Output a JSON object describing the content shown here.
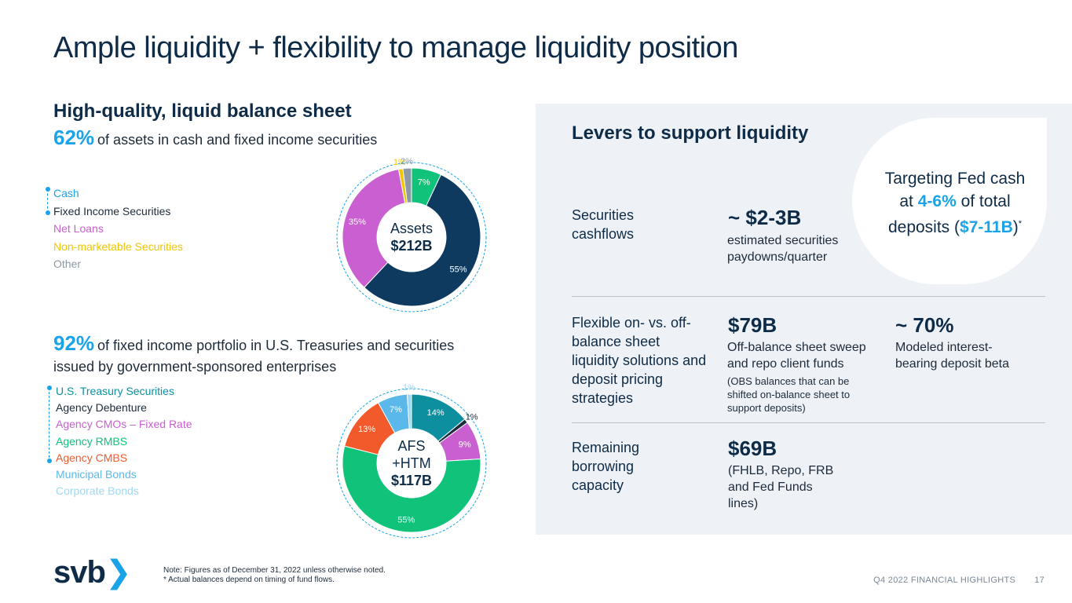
{
  "slide": {
    "title": "Ample liquidity + flexibility to manage liquidity position"
  },
  "left": {
    "heading": "High-quality, liquid balance sheet",
    "stat1_big": "62%",
    "stat1_text": "of assets in cash and fixed income securities",
    "assets_legend": [
      {
        "label": "Cash",
        "color": "#1aa3e8"
      },
      {
        "label": "Fixed Income Securities",
        "color": "#1d2b3a"
      },
      {
        "label": "Net Loans",
        "color": "#c95fd0"
      },
      {
        "label": "Non-marketable Securities",
        "color": "#f2c500"
      },
      {
        "label": "Other",
        "color": "#8d99a6"
      }
    ],
    "assets_center_line1": "Assets",
    "assets_center_line2": "$212B",
    "stat2_big": "92%",
    "stat2_text": "of fixed income portfolio in U.S. Treasuries and securities issued by government-sponsored enterprises",
    "afs_legend": [
      {
        "label": "U.S. Treasury Securities",
        "color": "#0e8fa0"
      },
      {
        "label": "Agency Debenture",
        "color": "#1d2b3a"
      },
      {
        "label": "Agency CMOs – Fixed Rate",
        "color": "#c95fd0"
      },
      {
        "label": "Agency RMBS",
        "color": "#10c27a"
      },
      {
        "label": "Agency CMBS",
        "color": "#f25a2c"
      },
      {
        "label": "Municipal Bonds",
        "color": "#5ab9ea"
      },
      {
        "label": "Corporate Bonds",
        "color": "#9fd8f2"
      }
    ],
    "afs_center_line1": "AFS",
    "afs_center_line2": "+HTM",
    "afs_center_line3": "$117B"
  },
  "chart_data": [
    {
      "type": "pie",
      "title": "Assets $212B",
      "categories": [
        "Cash",
        "Fixed Income Securities",
        "Net Loans",
        "Non-marketable Securities",
        "Other"
      ],
      "values": [
        7,
        55,
        35,
        1,
        2
      ],
      "labels": [
        "7%",
        "55%",
        "35%",
        "1%",
        "2%"
      ],
      "colors": [
        "#10c27a",
        "#0e3a5f",
        "#c95fd0",
        "#f2c500",
        "#8d99a6"
      ]
    },
    {
      "type": "pie",
      "title": "AFS +HTM $117B",
      "categories": [
        "U.S. Treasury Securities",
        "Agency Debenture",
        "Agency CMOs – Fixed Rate",
        "Agency RMBS",
        "Agency CMBS",
        "Municipal Bonds",
        "Corporate Bonds"
      ],
      "values": [
        14,
        1,
        9,
        55,
        13,
        7,
        1
      ],
      "labels": [
        "14%",
        "1%",
        "9%",
        "55%",
        "13%",
        "7%",
        "1%"
      ],
      "colors": [
        "#0e8fa0",
        "#1d2b3a",
        "#c95fd0",
        "#10c27a",
        "#f25a2c",
        "#5ab9ea",
        "#9fd8f2"
      ]
    }
  ],
  "right": {
    "heading": "Levers to support liquidity",
    "target_line1": "Targeting Fed cash",
    "target_line2_pre": "at ",
    "target_line2_hl": "4-6%",
    "target_line2_post": " of total",
    "target_line3_pre": "deposits (",
    "target_line3_hl": "$7-11B",
    "target_line3_post": ")",
    "target_sup": "*",
    "row1_label": "Securities cashflows",
    "row1_big": "~ $2-3B",
    "row1_desc": "estimated securities paydowns/quarter",
    "row2_label": "Flexible on- vs. off-balance sheet liquidity solutions and deposit pricing strategies",
    "row2_big": "$79B",
    "row2_desc": "Off-balance sheet sweep and repo client funds",
    "row2_small": "(OBS balances that can be shifted on-balance sheet to support deposits)",
    "row2_big2": "~ 70%",
    "row2_desc2": "Modeled interest-bearing deposit beta",
    "row3_label": "Remaining borrowing capacity",
    "row3_big": "$69B",
    "row3_desc": "(FHLB, Repo, FRB and Fed Funds lines)"
  },
  "footer": {
    "logo": "svb",
    "logo_chevron": "❯",
    "note_line1": "Note: Figures as of December 31, 2022 unless otherwise noted.",
    "note_line2": "* Actual balances depend on timing of fund flows.",
    "section": "Q4 2022 FINANCIAL HIGHLIGHTS",
    "page": "17"
  }
}
